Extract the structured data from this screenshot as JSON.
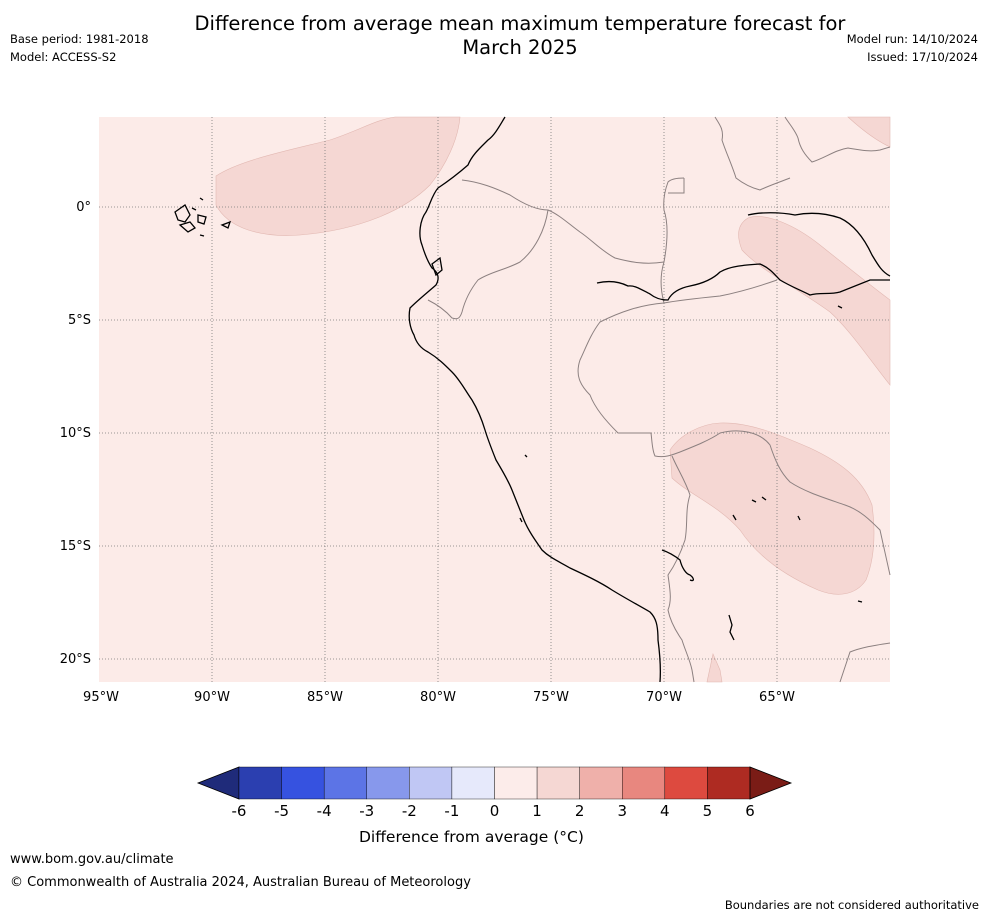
{
  "title_line1": "Difference from average mean maximum temperature forecast for",
  "title_line2": "March 2025",
  "base_period": "Base period: 1981-2018",
  "model": "Model: ACCESS-S2",
  "model_run": "Model run: 14/10/2024",
  "issued": "Issued: 17/10/2024",
  "lat_labels": [
    "0°",
    "5°S",
    "10°S",
    "15°S",
    "20°S"
  ],
  "lon_labels": [
    "95°W",
    "90°W",
    "85°W",
    "80°W",
    "75°W",
    "70°W",
    "65°W"
  ],
  "colorbar": {
    "label": "Difference from average (°C)",
    "ticks": [
      "-6",
      "-5",
      "-4",
      "-3",
      "-2",
      "-1",
      "0",
      "1",
      "2",
      "3",
      "4",
      "5",
      "6"
    ],
    "colors": {
      "under": "#1f2b7a",
      "bins": [
        "#2b3fb0",
        "#3652e0",
        "#5c74e6",
        "#8798ec",
        "#c0c7f4",
        "#e6e9fb",
        "#fcecea",
        "#f5d7d3",
        "#efb0aa",
        "#e8877f",
        "#dd4a3f",
        "#ae2b22"
      ],
      "over": "#7a1c16"
    }
  },
  "map_colors": {
    "background": "#fcebe8",
    "anomaly_1_2": "#f5d7d3",
    "coastline": "#000000",
    "borders": "#8c8080",
    "gridlines": "#7a7a7a"
  },
  "footer": {
    "url": "www.bom.gov.au/climate",
    "copyright": "© Commonwealth of Australia 2024, Australian Bureau of Meteorology",
    "disclaimer": "Boundaries are not considered authoritative"
  }
}
